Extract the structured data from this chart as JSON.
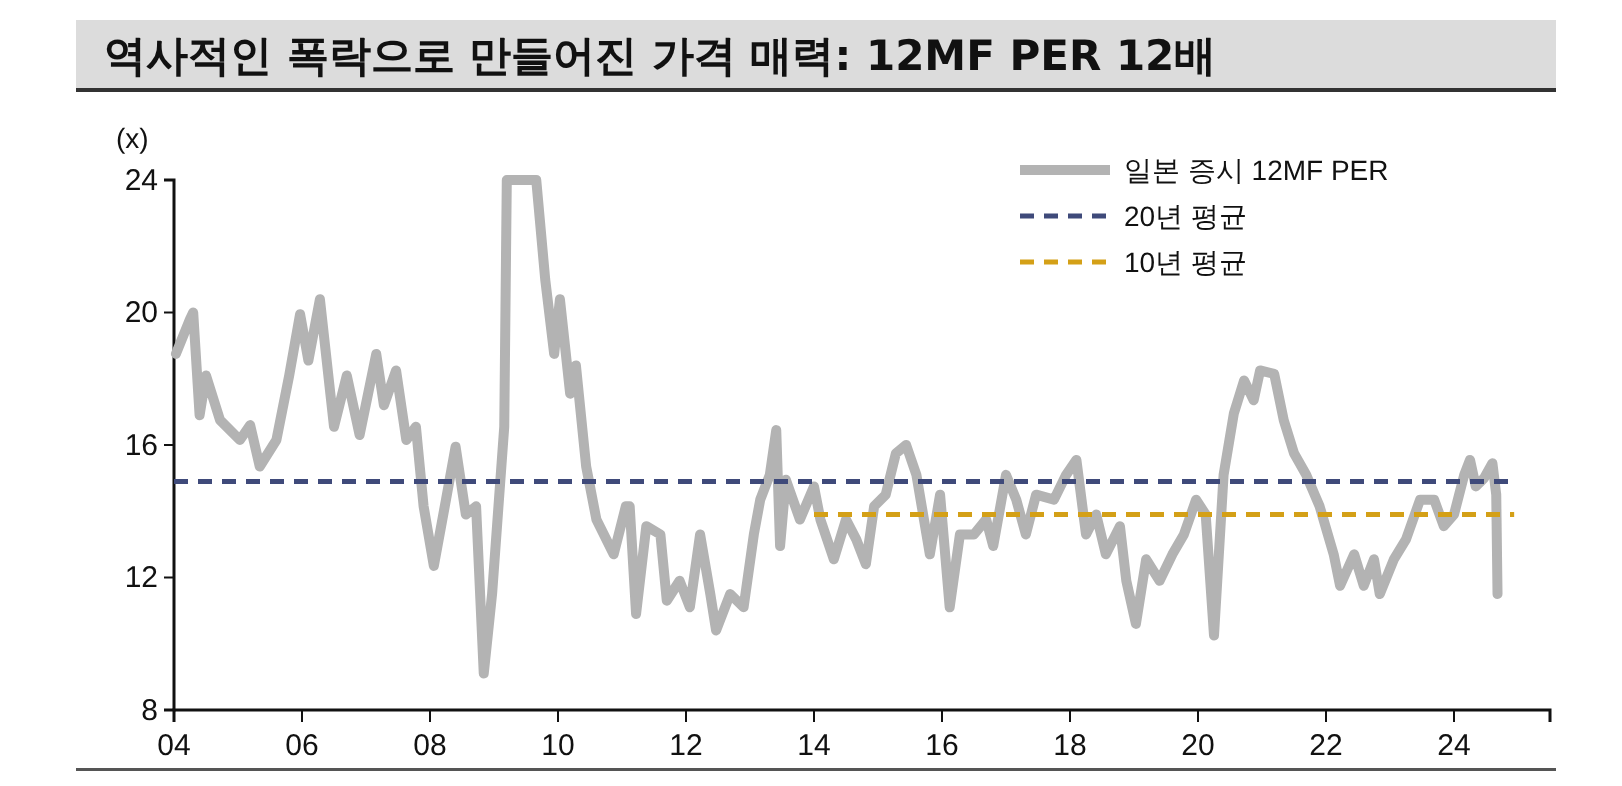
{
  "chart_data": {
    "type": "line",
    "title": "역사적인 폭락으로 만들어진 가격 매력: 12MF PER 12배",
    "ylabel": "(x)",
    "xlim": [
      2004,
      2025.5
    ],
    "xticks": [
      {
        "value": 2004,
        "label": "04"
      },
      {
        "value": 2006,
        "label": "06"
      },
      {
        "value": 2008,
        "label": "08"
      },
      {
        "value": 2010,
        "label": "10"
      },
      {
        "value": 2012,
        "label": "12"
      },
      {
        "value": 2014,
        "label": "14"
      },
      {
        "value": 2016,
        "label": "16"
      },
      {
        "value": 2018,
        "label": "18"
      },
      {
        "value": 2020,
        "label": "20"
      },
      {
        "value": 2022,
        "label": "22"
      },
      {
        "value": 2024,
        "label": "24"
      }
    ],
    "ylim": [
      8,
      24
    ],
    "yticks": [
      8,
      12,
      16,
      20,
      24
    ],
    "grid": false,
    "legend": "top right",
    "series": [
      {
        "name": "일본 증시 12MF PER",
        "color": "#b3b3b3",
        "line_style": "solid",
        "x": [
          2004.03,
          2004.25,
          2004.3,
          2004.4,
          2004.5,
          2004.72,
          2005.03,
          2005.19,
          2005.34,
          2005.6,
          2005.8,
          2005.97,
          2006.1,
          2006.28,
          2006.5,
          2006.7,
          2006.9,
          2007.16,
          2007.28,
          2007.47,
          2007.63,
          2007.78,
          2007.9,
          2008.06,
          2008.25,
          2008.4,
          2008.56,
          2008.72,
          2008.84,
          2008.97,
          2009.16,
          2009.2,
          2009.66,
          2009.8,
          2009.94,
          2010.03,
          2010.19,
          2010.28,
          2010.44,
          2010.6,
          2010.87,
          2011.06,
          2011.12,
          2011.22,
          2011.38,
          2011.6,
          2011.7,
          2011.9,
          2012.06,
          2012.22,
          2012.38,
          2012.47,
          2012.69,
          2012.9,
          2013.06,
          2013.16,
          2013.31,
          2013.41,
          2013.47,
          2013.56,
          2013.78,
          2014.0,
          2014.1,
          2014.31,
          2014.5,
          2014.66,
          2014.81,
          2014.94,
          2015.12,
          2015.28,
          2015.44,
          2015.6,
          2015.81,
          2015.97,
          2016.12,
          2016.28,
          2016.5,
          2016.69,
          2016.8,
          2017.0,
          2017.16,
          2017.31,
          2017.47,
          2017.75,
          2017.94,
          2018.1,
          2018.25,
          2018.41,
          2018.56,
          2018.78,
          2018.88,
          2019.03,
          2019.19,
          2019.4,
          2019.6,
          2019.78,
          2019.97,
          2020.12,
          2020.25,
          2020.4,
          2020.56,
          2020.72,
          2020.87,
          2020.97,
          2021.19,
          2021.34,
          2021.5,
          2021.69,
          2021.9,
          2022.12,
          2022.22,
          2022.44,
          2022.59,
          2022.75,
          2022.84,
          2023.06,
          2023.25,
          2023.47,
          2023.69,
          2023.84,
          2024.0,
          2024.16,
          2024.25,
          2024.34,
          2024.47,
          2024.6,
          2024.66,
          2024.68
        ],
        "values": [
          18.75,
          19.8,
          20.0,
          16.9,
          18.1,
          16.75,
          16.15,
          16.6,
          15.35,
          16.15,
          18.1,
          19.95,
          18.55,
          20.4,
          16.55,
          18.1,
          16.3,
          18.75,
          17.2,
          18.25,
          16.15,
          16.55,
          14.15,
          12.35,
          14.35,
          15.95,
          13.9,
          14.15,
          9.1,
          11.5,
          16.55,
          24,
          24,
          21,
          18.75,
          20.4,
          17.55,
          18.4,
          15.35,
          13.75,
          12.7,
          14.15,
          14.15,
          10.9,
          13.55,
          13.3,
          11.3,
          11.9,
          11.1,
          13.3,
          11.5,
          10.4,
          11.5,
          11.1,
          13.3,
          14.35,
          15.1,
          16.45,
          12.95,
          14.95,
          13.75,
          14.75,
          13.75,
          12.55,
          13.75,
          13.15,
          12.4,
          14.15,
          14.5,
          15.75,
          16.0,
          15.1,
          12.7,
          14.5,
          11.1,
          13.3,
          13.3,
          13.75,
          12.95,
          15.1,
          14.35,
          13.3,
          14.5,
          14.35,
          15.1,
          15.55,
          13.3,
          13.9,
          12.7,
          13.55,
          11.9,
          10.6,
          12.55,
          11.9,
          12.7,
          13.3,
          14.35,
          13.9,
          10.25,
          15.1,
          16.95,
          17.95,
          17.35,
          18.25,
          18.15,
          16.75,
          15.75,
          15.1,
          14.15,
          12.7,
          11.75,
          12.7,
          11.75,
          12.55,
          11.5,
          12.55,
          13.15,
          14.35,
          14.35,
          13.55,
          13.9,
          15.1,
          15.55,
          14.75,
          15.0,
          15.45,
          14.5,
          11.5
        ]
      },
      {
        "name": "20년 평균",
        "color": "#3f4a7a",
        "line_style": "dashed",
        "x": [
          2004,
          2024.94
        ],
        "values": [
          14.9,
          14.9
        ]
      },
      {
        "name": "10년 평균",
        "color": "#d4a017",
        "line_style": "dashed",
        "x": [
          2014,
          2024.94
        ],
        "values": [
          13.9,
          13.9
        ]
      }
    ]
  }
}
